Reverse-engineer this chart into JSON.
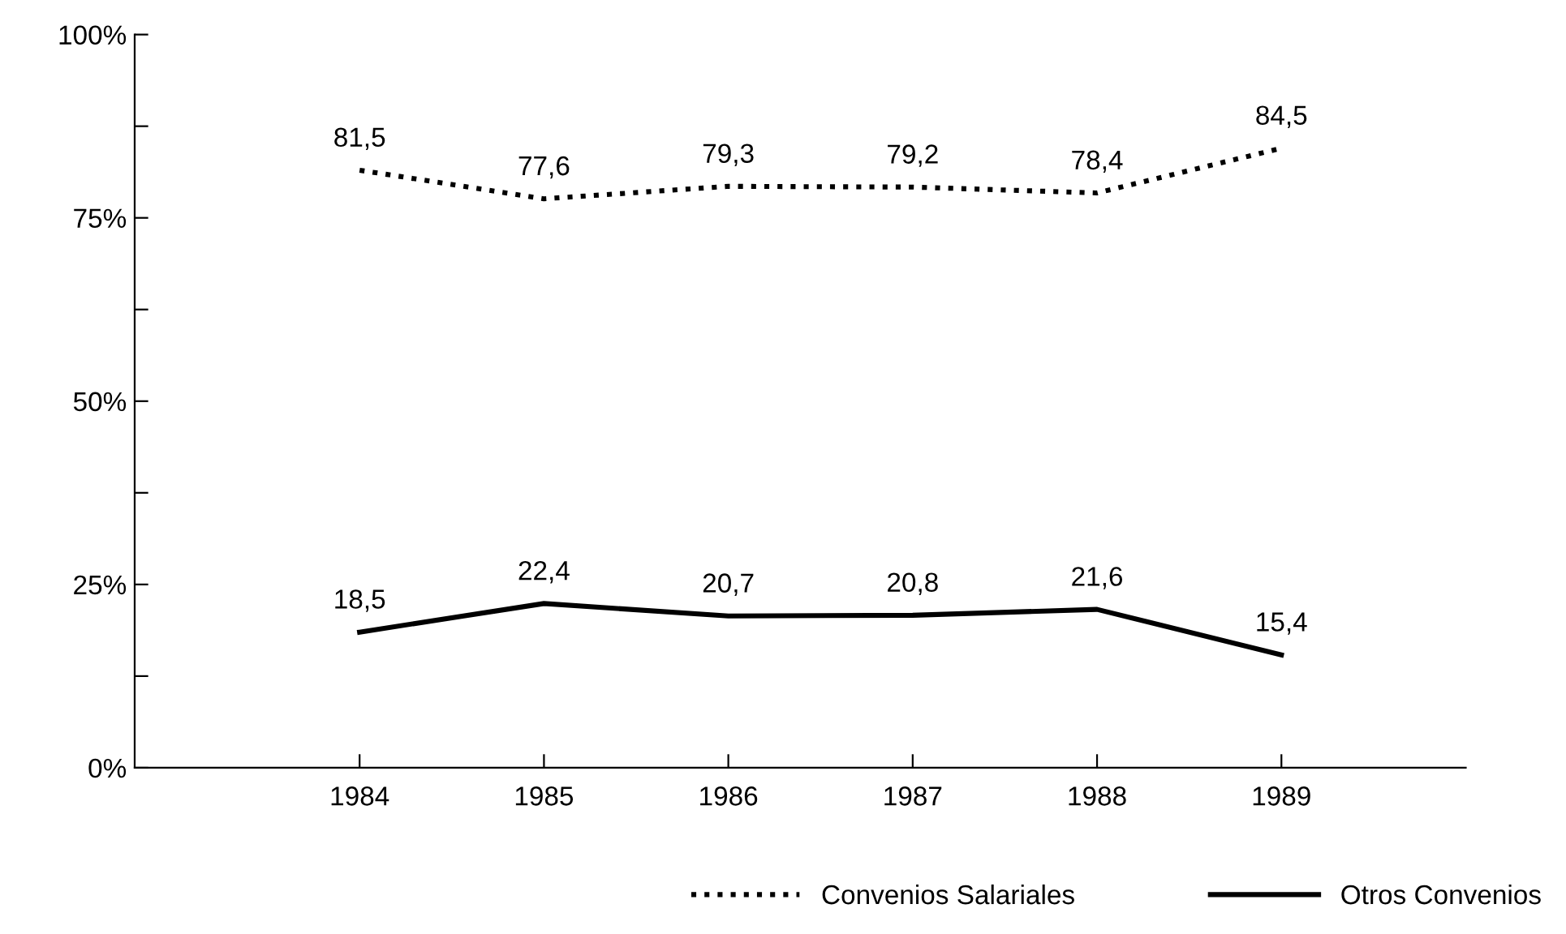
{
  "chart_data": {
    "type": "line",
    "categories": [
      "1984",
      "1985",
      "1986",
      "1987",
      "1988",
      "1989"
    ],
    "series": [
      {
        "name": "Convenios Salariales",
        "color": "#000000",
        "line_style": "dotted",
        "values": [
          81.5,
          77.6,
          79.3,
          79.2,
          78.4,
          84.5
        ],
        "value_labels": [
          "81,5",
          "77,6",
          "79,3",
          "79,2",
          "78,4",
          "84,5"
        ]
      },
      {
        "name": "Otros Convenios",
        "color": "#000000",
        "line_style": "solid",
        "values": [
          18.5,
          22.4,
          20.7,
          20.8,
          21.6,
          15.4
        ],
        "value_labels": [
          "18,5",
          "22,4",
          "20,7",
          "20,8",
          "21,6",
          "15,4"
        ]
      }
    ],
    "ylim": [
      0,
      100
    ],
    "yticks": [
      {
        "value": 0,
        "label": "0%"
      },
      {
        "value": 12.5,
        "label": null
      },
      {
        "value": 25,
        "label": "25%"
      },
      {
        "value": 37.5,
        "label": null
      },
      {
        "value": 50,
        "label": "50%"
      },
      {
        "value": 62.5,
        "label": null
      },
      {
        "value": 75,
        "label": "75%"
      },
      {
        "value": 87.5,
        "label": null
      },
      {
        "value": 100,
        "label": "100%"
      }
    ],
    "grid": false,
    "legend": "bottom right"
  }
}
